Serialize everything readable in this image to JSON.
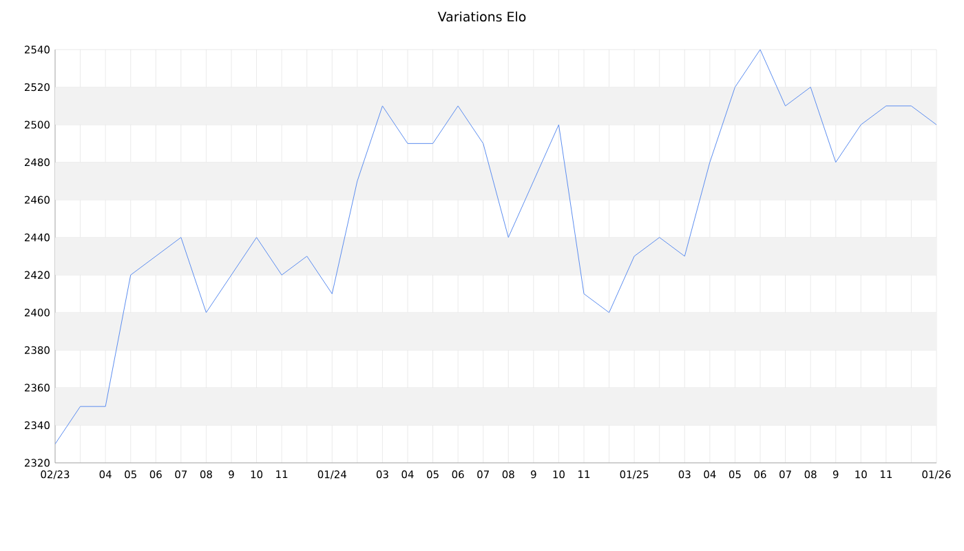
{
  "chart_data": {
    "type": "line",
    "title": "Variations Elo",
    "x": [
      "2023-02",
      "2023-03",
      "2023-04",
      "2023-05",
      "2023-06",
      "2023-07",
      "2023-08",
      "2023-09",
      "2023-10",
      "2023-11",
      "2023-12",
      "2024-01",
      "2024-02",
      "2024-03",
      "2024-04",
      "2024-05",
      "2024-06",
      "2024-07",
      "2024-08",
      "2024-09",
      "2024-10",
      "2024-11",
      "2024-12",
      "2025-01",
      "2025-02",
      "2025-03",
      "2025-04",
      "2025-05",
      "2025-06",
      "2025-07",
      "2025-08",
      "2025-09",
      "2025-10",
      "2025-11",
      "2025-12",
      "2026-01"
    ],
    "series": [
      {
        "color": "#5b8def",
        "values": [
          2330,
          2350,
          2350,
          2420,
          2430,
          2440,
          2400,
          2420,
          2440,
          2420,
          2430,
          2410,
          2470,
          2510,
          2490,
          2490,
          2510,
          2490,
          2440,
          2470,
          2500,
          2410,
          2400,
          2430,
          2440,
          2430,
          2480,
          2520,
          2540,
          2510,
          2520,
          2480,
          2500,
          2510,
          2510,
          2500
        ]
      }
    ],
    "xlim": [
      "2023-02",
      "2026-01"
    ],
    "xticks": [
      {
        "value": "2023-02",
        "label": "02/23"
      },
      {
        "value": "2023-03",
        "label": null
      },
      {
        "value": "2023-04",
        "label": "04"
      },
      {
        "value": "2023-05",
        "label": "05"
      },
      {
        "value": "2023-06",
        "label": "06"
      },
      {
        "value": "2023-07",
        "label": "07"
      },
      {
        "value": "2023-08",
        "label": "08"
      },
      {
        "value": "2023-09",
        "label": "9"
      },
      {
        "value": "2023-10",
        "label": "10"
      },
      {
        "value": "2023-11",
        "label": "11"
      },
      {
        "value": "2023-12",
        "label": null
      },
      {
        "value": "2024-01",
        "label": "01/24"
      },
      {
        "value": "2024-02",
        "label": null
      },
      {
        "value": "2024-03",
        "label": "03"
      },
      {
        "value": "2024-04",
        "label": "04"
      },
      {
        "value": "2024-05",
        "label": "05"
      },
      {
        "value": "2024-06",
        "label": "06"
      },
      {
        "value": "2024-07",
        "label": "07"
      },
      {
        "value": "2024-08",
        "label": "08"
      },
      {
        "value": "2024-09",
        "label": "9"
      },
      {
        "value": "2024-10",
        "label": "10"
      },
      {
        "value": "2024-11",
        "label": "11"
      },
      {
        "value": "2024-12",
        "label": null
      },
      {
        "value": "2025-01",
        "label": "01/25"
      },
      {
        "value": "2025-02",
        "label": null
      },
      {
        "value": "2025-03",
        "label": "03"
      },
      {
        "value": "2025-04",
        "label": "04"
      },
      {
        "value": "2025-05",
        "label": "05"
      },
      {
        "value": "2025-06",
        "label": "06"
      },
      {
        "value": "2025-07",
        "label": "07"
      },
      {
        "value": "2025-08",
        "label": "08"
      },
      {
        "value": "2025-09",
        "label": "9"
      },
      {
        "value": "2025-10",
        "label": "10"
      },
      {
        "value": "2025-11",
        "label": "11"
      },
      {
        "value": "2025-12",
        "label": null
      },
      {
        "value": "2026-01",
        "label": "01/26"
      }
    ],
    "ylim": [
      2320,
      2540
    ],
    "yticks": [
      2320,
      2340,
      2360,
      2380,
      2400,
      2420,
      2440,
      2460,
      2480,
      2500,
      2520,
      2540
    ],
    "grid": true,
    "marker": "none",
    "line_style": "solid"
  }
}
